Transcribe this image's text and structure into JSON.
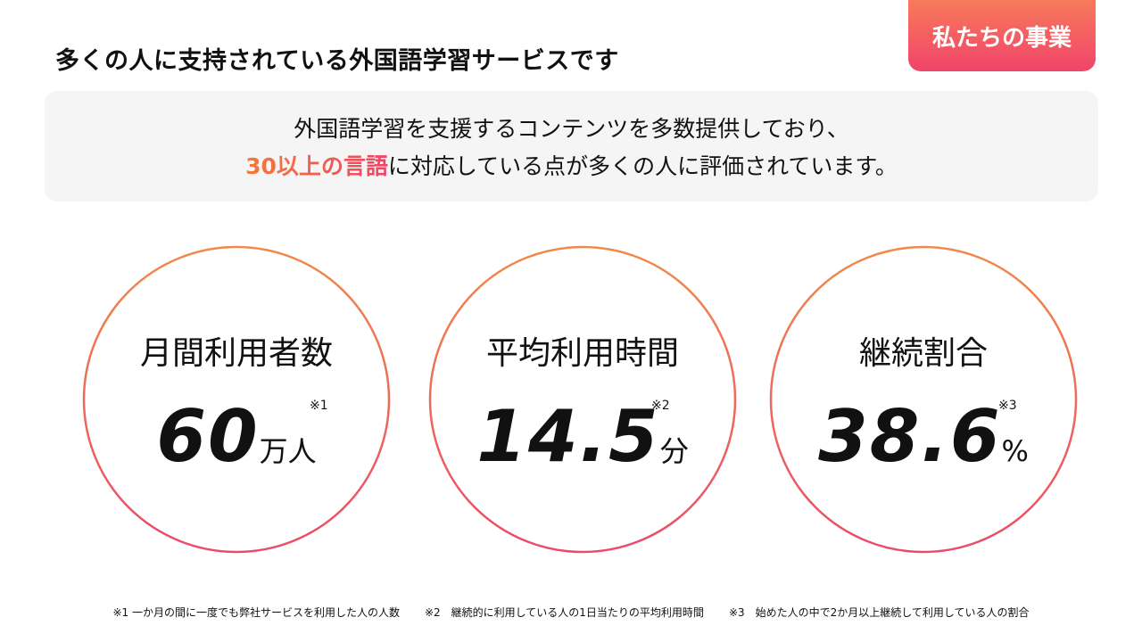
{
  "header": {
    "title": "多くの人に支持されている外国語学習サービスです",
    "badge": "私たちの事業"
  },
  "summary": {
    "line1": "外国語学習を支援するコンテンツを多数提供しており、",
    "highlight": "30以上の言語",
    "line2": "に対応している点が多くの人に評価されています。"
  },
  "stats": [
    {
      "label": "月間利用者数",
      "value": 60,
      "unit": "万人",
      "note": "※1"
    },
    {
      "label": "平均利用時間",
      "value": 14.5,
      "unit": "分",
      "note": "※2"
    },
    {
      "label": "継続割合",
      "value": 38.6,
      "unit": "%",
      "note": "※3"
    }
  ],
  "footnotes": [
    "※1 一か月の間に一度でも弊社サービスを利用した人の人数",
    "※2　継続的に利用している人の1日当たりの平均利用時間",
    "※3　始めた人の中で2か月以上継続して利用している人の割合"
  ]
}
